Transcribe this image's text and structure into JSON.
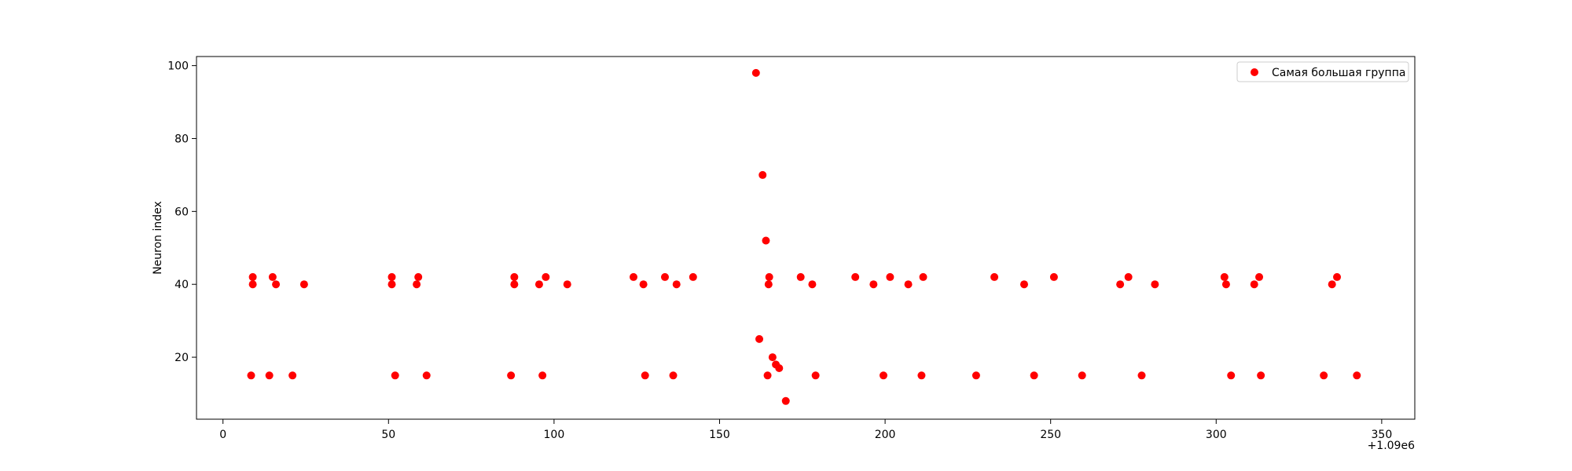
{
  "chart_data": {
    "type": "scatter",
    "title": "",
    "xlabel": "",
    "ylabel": "Neuron index",
    "x_offset_label": "+1.09e6",
    "xlim": [
      -8,
      360
    ],
    "ylim": [
      3,
      102.5
    ],
    "xticks": [
      0,
      50,
      100,
      150,
      200,
      250,
      300,
      350
    ],
    "yticks": [
      20,
      40,
      60,
      80,
      100
    ],
    "grid": false,
    "legend_position": "top-right",
    "marker_color": "#ff0000",
    "series": [
      {
        "name": "Самая большая группа",
        "points": [
          [
            8.5,
            15
          ],
          [
            9,
            40
          ],
          [
            9,
            42
          ],
          [
            14,
            15
          ],
          [
            15,
            42
          ],
          [
            16,
            40
          ],
          [
            21,
            15
          ],
          [
            24.5,
            40
          ],
          [
            51,
            40
          ],
          [
            51,
            42
          ],
          [
            52,
            15
          ],
          [
            58.5,
            40
          ],
          [
            59,
            42
          ],
          [
            61.5,
            15
          ],
          [
            87,
            15
          ],
          [
            88,
            40
          ],
          [
            88,
            42
          ],
          [
            95.5,
            40
          ],
          [
            96.5,
            15
          ],
          [
            97.5,
            42
          ],
          [
            104,
            40
          ],
          [
            124,
            42
          ],
          [
            127,
            40
          ],
          [
            127.5,
            15
          ],
          [
            133.5,
            42
          ],
          [
            136,
            15
          ],
          [
            137,
            40
          ],
          [
            142,
            42
          ],
          [
            161,
            98
          ],
          [
            162,
            25
          ],
          [
            163,
            70
          ],
          [
            164,
            52
          ],
          [
            164.5,
            15
          ],
          [
            164.8,
            40
          ],
          [
            165,
            42
          ],
          [
            166,
            20
          ],
          [
            167,
            18
          ],
          [
            168,
            17
          ],
          [
            170,
            8
          ],
          [
            174.5,
            42
          ],
          [
            178,
            40
          ],
          [
            179,
            15
          ],
          [
            191,
            42
          ],
          [
            196.5,
            40
          ],
          [
            199.5,
            15
          ],
          [
            201.5,
            42
          ],
          [
            207,
            40
          ],
          [
            211,
            15
          ],
          [
            211.5,
            42
          ],
          [
            227.5,
            15
          ],
          [
            233,
            42
          ],
          [
            242,
            40
          ],
          [
            245,
            15
          ],
          [
            251,
            42
          ],
          [
            259.5,
            15
          ],
          [
            271,
            40
          ],
          [
            273.5,
            42
          ],
          [
            277.5,
            15
          ],
          [
            281.5,
            40
          ],
          [
            302.5,
            42
          ],
          [
            303,
            40
          ],
          [
            304.5,
            15
          ],
          [
            311.5,
            40
          ],
          [
            313,
            42
          ],
          [
            313.5,
            15
          ],
          [
            332.5,
            15
          ],
          [
            335,
            40
          ],
          [
            336.5,
            42
          ],
          [
            342.5,
            15
          ]
        ]
      }
    ]
  }
}
